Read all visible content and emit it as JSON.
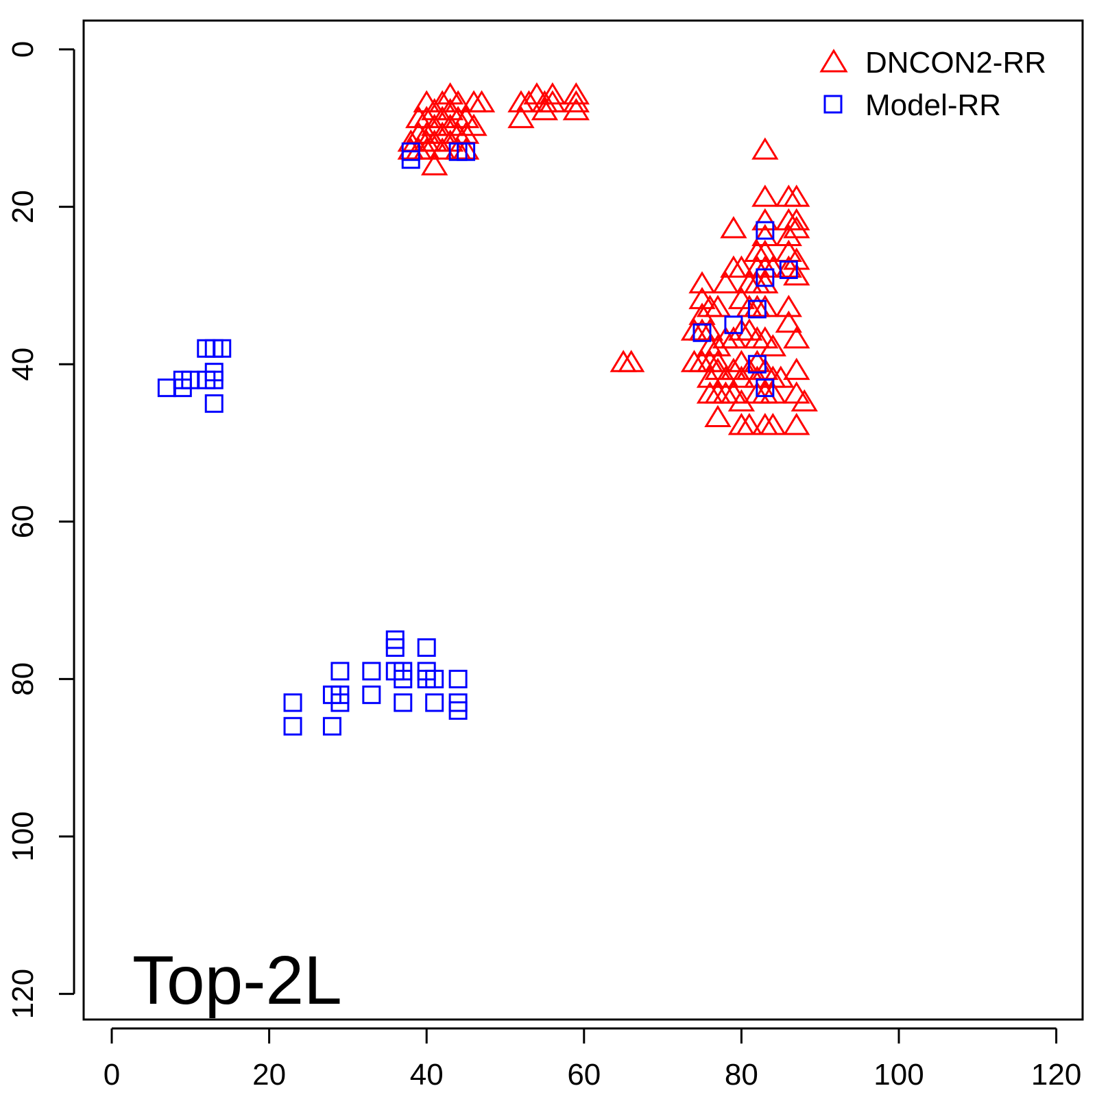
{
  "chart_data": {
    "type": "scatter",
    "title": "",
    "xlabel": "",
    "ylabel": "",
    "xlim": [
      -2,
      123
    ],
    "ylim": [
      123.5,
      -3.5
    ],
    "y_axis_inverted": true,
    "x_ticks": [
      "0",
      "20",
      "40",
      "60",
      "80",
      "100",
      "120"
    ],
    "y_ticks": [
      "0",
      "20",
      "40",
      "60",
      "80",
      "100",
      "120"
    ],
    "grid": false,
    "legend_position": "top-right",
    "annotation": "Top-2L",
    "series": [
      {
        "name": "DNCON2-RR",
        "marker": "triangle",
        "color": "#ff0000",
        "points": [
          [
            38,
            12
          ],
          [
            38,
            13
          ],
          [
            39,
            9
          ],
          [
            39,
            11
          ],
          [
            39,
            13
          ],
          [
            40,
            7
          ],
          [
            40,
            9
          ],
          [
            40,
            11
          ],
          [
            40,
            12
          ],
          [
            40,
            13
          ],
          [
            41,
            8
          ],
          [
            41,
            10
          ],
          [
            41,
            12
          ],
          [
            41,
            15
          ],
          [
            42,
            7
          ],
          [
            42,
            9
          ],
          [
            42,
            11
          ],
          [
            42,
            13
          ],
          [
            43,
            6
          ],
          [
            43,
            8
          ],
          [
            43,
            10
          ],
          [
            43,
            12
          ],
          [
            44,
            7
          ],
          [
            44,
            9
          ],
          [
            44,
            11
          ],
          [
            44,
            13
          ],
          [
            45,
            9
          ],
          [
            45,
            11
          ],
          [
            45,
            13
          ],
          [
            46,
            7
          ],
          [
            46,
            10
          ],
          [
            47,
            7
          ],
          [
            52,
            7
          ],
          [
            52,
            9
          ],
          [
            53,
            7
          ],
          [
            54,
            6
          ],
          [
            55,
            7
          ],
          [
            55,
            8
          ],
          [
            56,
            6
          ],
          [
            56,
            7
          ],
          [
            59,
            6
          ],
          [
            59,
            7
          ],
          [
            59,
            8
          ],
          [
            65,
            40
          ],
          [
            66,
            40
          ],
          [
            83,
            13
          ],
          [
            83,
            19
          ],
          [
            86,
            19
          ],
          [
            87,
            19
          ],
          [
            79,
            23
          ],
          [
            83,
            22
          ],
          [
            83,
            24
          ],
          [
            86,
            22
          ],
          [
            86,
            24
          ],
          [
            87,
            22
          ],
          [
            87,
            23
          ],
          [
            82,
            26
          ],
          [
            82,
            28
          ],
          [
            83,
            26
          ],
          [
            83,
            28
          ],
          [
            84,
            28
          ],
          [
            86,
            26
          ],
          [
            86,
            28
          ],
          [
            87,
            27
          ],
          [
            87,
            29
          ],
          [
            75,
            30
          ],
          [
            75,
            32
          ],
          [
            75,
            34
          ],
          [
            76,
            33
          ],
          [
            77,
            33
          ],
          [
            78,
            30
          ],
          [
            79,
            28
          ],
          [
            80,
            28
          ],
          [
            81,
            30
          ],
          [
            82,
            30
          ],
          [
            83,
            30
          ],
          [
            80,
            32
          ],
          [
            81,
            33
          ],
          [
            82,
            33
          ],
          [
            83,
            33
          ],
          [
            86,
            33
          ],
          [
            86,
            35
          ],
          [
            74,
            36
          ],
          [
            75,
            36
          ],
          [
            76,
            36
          ],
          [
            76,
            38
          ],
          [
            77,
            38
          ],
          [
            77,
            40
          ],
          [
            78,
            37
          ],
          [
            79,
            37
          ],
          [
            80,
            36
          ],
          [
            81,
            36
          ],
          [
            82,
            37
          ],
          [
            83,
            37
          ],
          [
            84,
            38
          ],
          [
            87,
            37
          ],
          [
            74,
            40
          ],
          [
            75,
            40
          ],
          [
            76,
            40
          ],
          [
            76,
            42
          ],
          [
            77,
            41
          ],
          [
            78,
            42
          ],
          [
            79,
            41
          ],
          [
            80,
            40
          ],
          [
            80,
            42
          ],
          [
            81,
            41
          ],
          [
            82,
            40
          ],
          [
            82,
            42
          ],
          [
            83,
            41
          ],
          [
            84,
            42
          ],
          [
            85,
            42
          ],
          [
            87,
            41
          ],
          [
            76,
            44
          ],
          [
            77,
            44
          ],
          [
            78,
            44
          ],
          [
            79,
            44
          ],
          [
            80,
            45
          ],
          [
            82,
            44
          ],
          [
            83,
            44
          ],
          [
            84,
            44
          ],
          [
            87,
            44
          ],
          [
            88,
            45
          ],
          [
            77,
            47
          ],
          [
            80,
            48
          ],
          [
            81,
            48
          ],
          [
            83,
            48
          ],
          [
            84,
            48
          ],
          [
            87,
            48
          ]
        ]
      },
      {
        "name": "Model-RR",
        "marker": "square",
        "color": "#0000ff",
        "points": [
          [
            38,
            13
          ],
          [
            38,
            14
          ],
          [
            44,
            13
          ],
          [
            45,
            13
          ],
          [
            83,
            23
          ],
          [
            83,
            29
          ],
          [
            86,
            28
          ],
          [
            82,
            33
          ],
          [
            79,
            35
          ],
          [
            75,
            36
          ],
          [
            82,
            40
          ],
          [
            83,
            43
          ],
          [
            12,
            38
          ],
          [
            13,
            38
          ],
          [
            14,
            38
          ],
          [
            13,
            41
          ],
          [
            13,
            42
          ],
          [
            12,
            42
          ],
          [
            10,
            42
          ],
          [
            9,
            42
          ],
          [
            9,
            43
          ],
          [
            7,
            43
          ],
          [
            13,
            45
          ],
          [
            36,
            75
          ],
          [
            36,
            76
          ],
          [
            40,
            76
          ],
          [
            29,
            79
          ],
          [
            33,
            79
          ],
          [
            36,
            79
          ],
          [
            37,
            79
          ],
          [
            40,
            79
          ],
          [
            37,
            80
          ],
          [
            40,
            80
          ],
          [
            41,
            80
          ],
          [
            44,
            80
          ],
          [
            28,
            82
          ],
          [
            29,
            82
          ],
          [
            33,
            82
          ],
          [
            23,
            83
          ],
          [
            29,
            83
          ],
          [
            37,
            83
          ],
          [
            41,
            83
          ],
          [
            44,
            83
          ],
          [
            44,
            84
          ],
          [
            23,
            86
          ],
          [
            28,
            86
          ]
        ]
      }
    ]
  }
}
